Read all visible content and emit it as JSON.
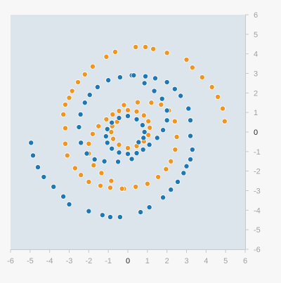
{
  "chart_data": {
    "type": "scatter",
    "title": "",
    "xlabel": "",
    "ylabel": "",
    "xlim": [
      -6,
      6
    ],
    "ylim": [
      -6,
      6
    ],
    "x_ticks": [
      "-6",
      "-5",
      "-4",
      "-3",
      "-2",
      "-1",
      "0",
      "1",
      "2",
      "3",
      "4",
      "5",
      "6"
    ],
    "y_ticks": [
      "6",
      "5",
      "4",
      "3",
      "2",
      "1",
      "0",
      "-1",
      "-2",
      "-3",
      "-4",
      "-5",
      "-6"
    ],
    "grid": false,
    "background_color": "#dce5ec",
    "series": [
      {
        "color": "#f0951f",
        "points": [
          [
            -0.55,
            0.52
          ],
          [
            -0.8,
            0.3
          ],
          [
            -0.85,
            0.0
          ],
          [
            -0.75,
            -0.35
          ],
          [
            -0.45,
            -0.65
          ],
          [
            0.0,
            -0.82
          ],
          [
            0.45,
            -0.72
          ],
          [
            0.82,
            -0.48
          ],
          [
            1.05,
            -0.15
          ],
          [
            1.12,
            0.22
          ],
          [
            1.05,
            0.55
          ],
          [
            0.82,
            0.85
          ],
          [
            0.45,
            1.05
          ],
          [
            0.0,
            1.12
          ],
          [
            -0.45,
            1.08
          ],
          [
            -0.78,
            0.9
          ],
          [
            -1.1,
            0.65
          ],
          [
            -1.5,
            0.3
          ],
          [
            -1.8,
            -0.1
          ],
          [
            -2.0,
            -0.6
          ],
          [
            -2.0,
            -1.1
          ],
          [
            -1.75,
            -1.7
          ],
          [
            -1.35,
            -2.1
          ],
          [
            -0.85,
            -2.5
          ],
          [
            -0.2,
            -2.9
          ],
          [
            0.4,
            -2.8
          ],
          [
            1.0,
            -2.65
          ],
          [
            1.55,
            -2.3
          ],
          [
            1.95,
            -1.9
          ],
          [
            2.2,
            -1.5
          ],
          [
            2.42,
            -0.9
          ],
          [
            2.5,
            -0.25
          ],
          [
            2.4,
            0.55
          ],
          [
            2.1,
            1.1
          ],
          [
            1.7,
            1.4
          ],
          [
            1.2,
            1.5
          ],
          [
            0.5,
            1.52
          ],
          [
            -0.2,
            1.38
          ],
          [
            -3.2,
            0.2
          ],
          [
            -3.3,
            0.9
          ],
          [
            -3.2,
            1.4
          ],
          [
            -3.0,
            1.75
          ],
          [
            -2.85,
            2.1
          ],
          [
            -2.55,
            2.55
          ],
          [
            -2.2,
            2.95
          ],
          [
            -1.8,
            3.35
          ],
          [
            -1.1,
            3.85
          ],
          [
            -0.65,
            4.1
          ],
          [
            0.4,
            4.35
          ],
          [
            0.9,
            4.35
          ],
          [
            1.3,
            4.25
          ],
          [
            2.0,
            4.05
          ],
          [
            3.0,
            3.7
          ],
          [
            3.3,
            3.3
          ],
          [
            3.8,
            2.8
          ],
          [
            4.3,
            2.3
          ],
          [
            4.6,
            1.8
          ],
          [
            4.85,
            1.2
          ],
          [
            4.95,
            0.55
          ],
          [
            -3.2,
            -0.6
          ],
          [
            -3.1,
            -1.2
          ],
          [
            -2.7,
            -1.85
          ],
          [
            -2.4,
            -2.2
          ],
          [
            -2.0,
            -2.55
          ],
          [
            -1.4,
            -2.75
          ],
          [
            -0.9,
            -2.85
          ],
          [
            -0.3,
            -2.9
          ]
        ]
      },
      {
        "color": "#1f77b4",
        "points": [
          [
            0.55,
            -0.52
          ],
          [
            0.8,
            -0.3
          ],
          [
            0.85,
            0.0
          ],
          [
            0.75,
            0.35
          ],
          [
            0.45,
            0.65
          ],
          [
            0.0,
            0.82
          ],
          [
            -0.45,
            0.72
          ],
          [
            -0.82,
            0.48
          ],
          [
            -1.05,
            0.15
          ],
          [
            -1.12,
            -0.22
          ],
          [
            -1.05,
            -0.55
          ],
          [
            -0.82,
            -0.85
          ],
          [
            -0.45,
            -1.05
          ],
          [
            0.0,
            -1.12
          ],
          [
            0.45,
            -1.08
          ],
          [
            0.78,
            -0.9
          ],
          [
            1.1,
            -0.65
          ],
          [
            1.5,
            -0.3
          ],
          [
            1.8,
            0.1
          ],
          [
            2.0,
            0.6
          ],
          [
            2.0,
            1.1
          ],
          [
            1.75,
            1.7
          ],
          [
            1.35,
            2.1
          ],
          [
            0.85,
            2.5
          ],
          [
            0.2,
            2.9
          ],
          [
            -0.4,
            2.8
          ],
          [
            -1.0,
            2.65
          ],
          [
            -1.55,
            2.3
          ],
          [
            -1.95,
            1.9
          ],
          [
            -2.2,
            1.5
          ],
          [
            -2.42,
            0.9
          ],
          [
            -2.5,
            0.25
          ],
          [
            -2.4,
            -0.55
          ],
          [
            -2.1,
            -1.1
          ],
          [
            -1.7,
            -1.4
          ],
          [
            -1.2,
            -1.5
          ],
          [
            -0.5,
            -1.52
          ],
          [
            0.2,
            -1.38
          ],
          [
            3.2,
            -0.2
          ],
          [
            3.3,
            -0.9
          ],
          [
            3.2,
            -1.4
          ],
          [
            3.0,
            -1.75
          ],
          [
            2.85,
            -2.1
          ],
          [
            2.55,
            -2.55
          ],
          [
            2.2,
            -2.95
          ],
          [
            1.8,
            -3.35
          ],
          [
            1.1,
            -3.85
          ],
          [
            0.65,
            -4.1
          ],
          [
            -0.4,
            -4.35
          ],
          [
            -0.9,
            -4.35
          ],
          [
            -1.3,
            -4.25
          ],
          [
            -2.0,
            -4.05
          ],
          [
            -3.0,
            -3.7
          ],
          [
            -3.3,
            -3.3
          ],
          [
            -3.8,
            -2.8
          ],
          [
            -4.3,
            -2.3
          ],
          [
            -4.6,
            -1.8
          ],
          [
            -4.85,
            -1.2
          ],
          [
            -4.95,
            -0.55
          ],
          [
            3.2,
            0.6
          ],
          [
            3.1,
            1.2
          ],
          [
            2.7,
            1.85
          ],
          [
            2.4,
            2.2
          ],
          [
            2.0,
            2.55
          ],
          [
            1.4,
            2.75
          ],
          [
            0.9,
            2.85
          ],
          [
            0.3,
            2.9
          ]
        ]
      }
    ]
  }
}
